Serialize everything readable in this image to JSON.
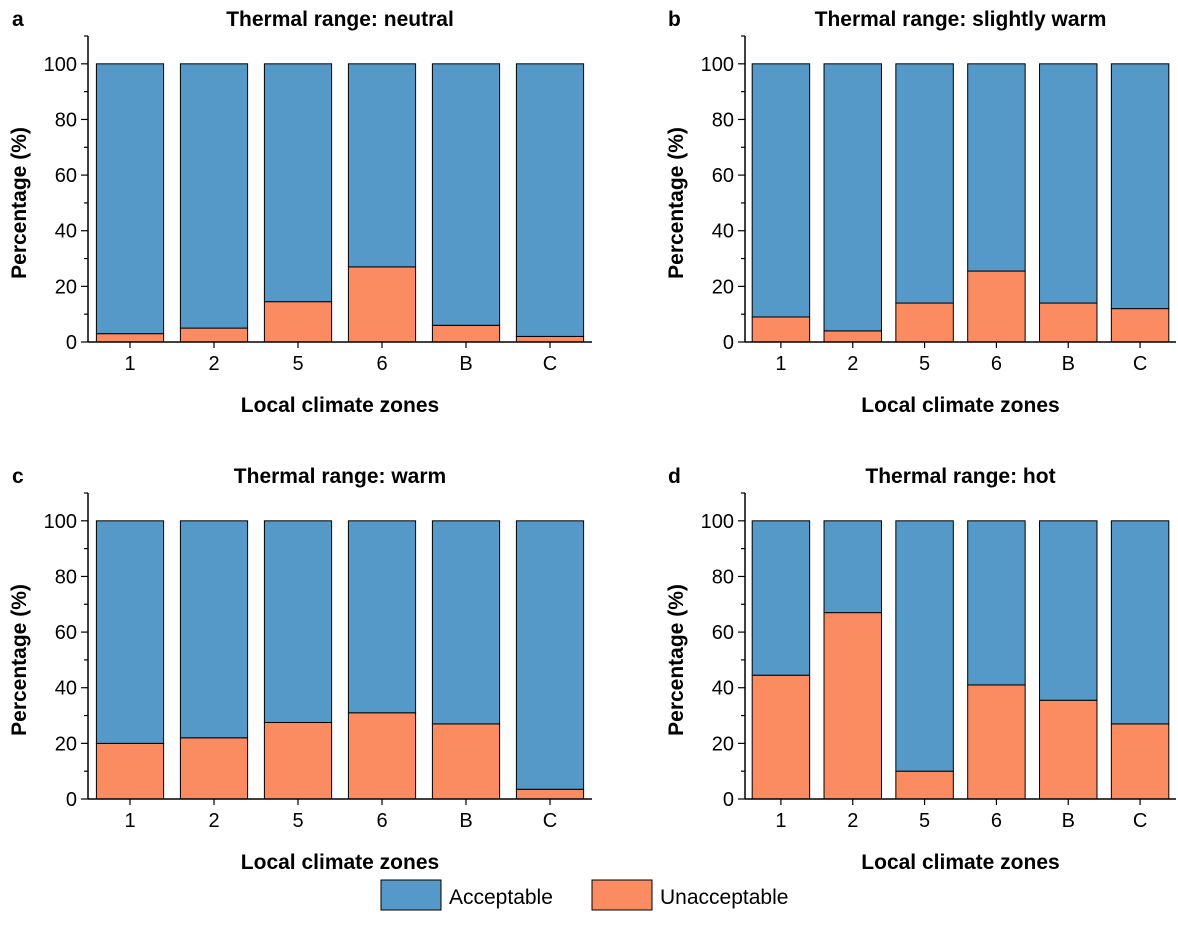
{
  "colors": {
    "acceptable": "#5499c7",
    "unacceptable": "#fb8c61"
  },
  "legend": [
    {
      "name": "Acceptable",
      "color": "#5499c7"
    },
    {
      "name": "Unacceptable",
      "color": "#fb8c61"
    }
  ],
  "chart_data": [
    {
      "panel": "a",
      "type": "bar",
      "stacked": true,
      "title": "Thermal range: neutral",
      "xlabel": "Local climate zones",
      "ylabel": "Percentage (%)",
      "ylim": [
        0,
        110
      ],
      "yticks": [
        0,
        20,
        40,
        60,
        80,
        100
      ],
      "categories": [
        "1",
        "2",
        "5",
        "6",
        "B",
        "C"
      ],
      "series": [
        {
          "name": "Unacceptable",
          "values": [
            3,
            5,
            14.5,
            27,
            6,
            2
          ]
        },
        {
          "name": "Acceptable",
          "values": [
            97,
            95,
            85.5,
            73,
            94,
            98
          ]
        }
      ]
    },
    {
      "panel": "b",
      "type": "bar",
      "stacked": true,
      "title": "Thermal range: slightly warm",
      "xlabel": "Local climate zones",
      "ylabel": "Percentage (%)",
      "ylim": [
        0,
        110
      ],
      "yticks": [
        0,
        20,
        40,
        60,
        80,
        100
      ],
      "categories": [
        "1",
        "2",
        "5",
        "6",
        "B",
        "C"
      ],
      "series": [
        {
          "name": "Unacceptable",
          "values": [
            9,
            4,
            14,
            25.5,
            14,
            12
          ]
        },
        {
          "name": "Acceptable",
          "values": [
            91,
            96,
            86,
            74.5,
            86,
            88
          ]
        }
      ]
    },
    {
      "panel": "c",
      "type": "bar",
      "stacked": true,
      "title": "Thermal range: warm",
      "xlabel": "Local climate zones",
      "ylabel": "Percentage (%)",
      "ylim": [
        0,
        110
      ],
      "yticks": [
        0,
        20,
        40,
        60,
        80,
        100
      ],
      "categories": [
        "1",
        "2",
        "5",
        "6",
        "B",
        "C"
      ],
      "series": [
        {
          "name": "Unacceptable",
          "values": [
            20,
            22,
            27.5,
            31,
            27,
            3.5
          ]
        },
        {
          "name": "Acceptable",
          "values": [
            80,
            78,
            72.5,
            69,
            73,
            96.5
          ]
        }
      ]
    },
    {
      "panel": "d",
      "type": "bar",
      "stacked": true,
      "title": "Thermal range: hot",
      "xlabel": "Local climate zones",
      "ylabel": "Percentage (%)",
      "ylim": [
        0,
        110
      ],
      "yticks": [
        0,
        20,
        40,
        60,
        80,
        100
      ],
      "categories": [
        "1",
        "2",
        "5",
        "6",
        "B",
        "C"
      ],
      "series": [
        {
          "name": "Unacceptable",
          "values": [
            44.5,
            67,
            10,
            41,
            35.5,
            27
          ]
        },
        {
          "name": "Acceptable",
          "values": [
            55.5,
            33,
            90,
            59,
            64.5,
            73
          ]
        }
      ]
    }
  ]
}
